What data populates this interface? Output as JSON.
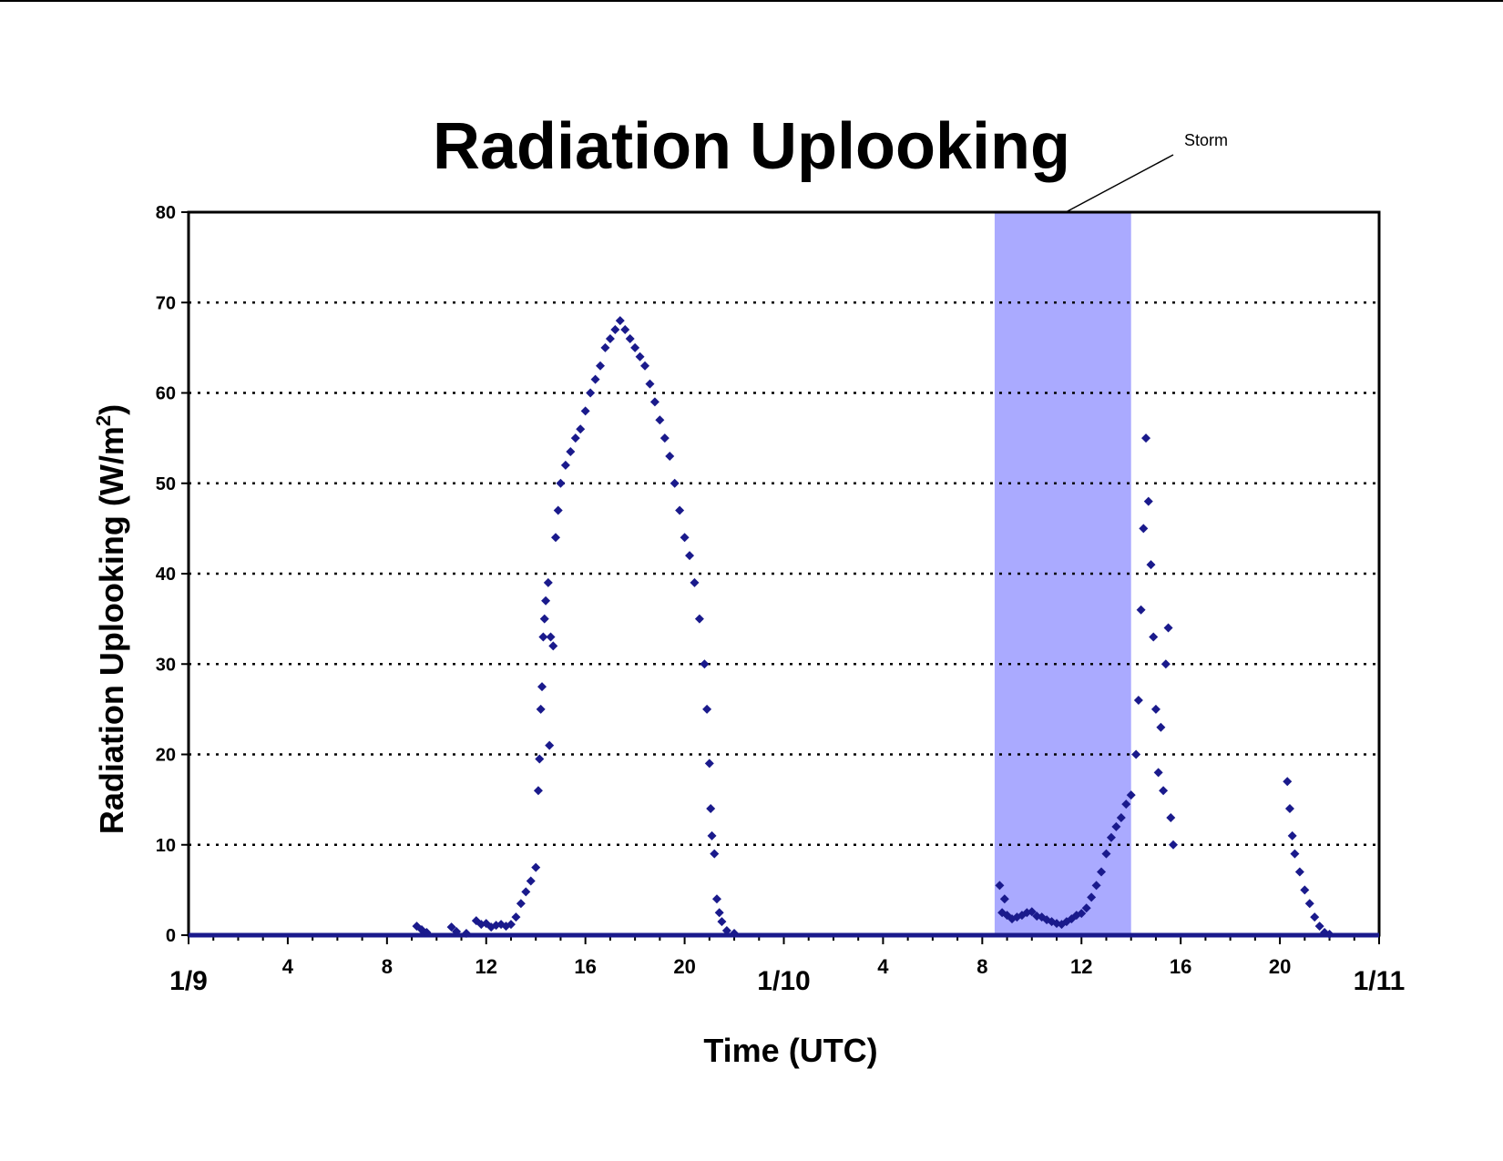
{
  "chart_data": {
    "type": "scatter",
    "title": "Radiation Uplooking",
    "xlabel": "Time (UTC)",
    "ylabel_main": "Radiation Uplooking (W/m",
    "ylabel_sup": "2",
    "ylabel_end": ")",
    "xlim_hours": [
      0,
      48
    ],
    "ylim": [
      0,
      80
    ],
    "y_ticks": [
      0,
      10,
      20,
      30,
      40,
      50,
      60,
      70,
      80
    ],
    "x_hour_ticks": [
      {
        "hour": 4,
        "label": "4"
      },
      {
        "hour": 8,
        "label": "8"
      },
      {
        "hour": 12,
        "label": "12"
      },
      {
        "hour": 16,
        "label": "16"
      },
      {
        "hour": 20,
        "label": "20"
      },
      {
        "hour": 28,
        "label": "4"
      },
      {
        "hour": 32,
        "label": "8"
      },
      {
        "hour": 36,
        "label": "12"
      },
      {
        "hour": 40,
        "label": "16"
      },
      {
        "hour": 44,
        "label": "20"
      }
    ],
    "x_day_ticks": [
      {
        "hour": 0,
        "label": "1/9"
      },
      {
        "hour": 24,
        "label": "1/10"
      },
      {
        "hour": 48,
        "label": "1/11"
      }
    ],
    "grid": "horizontal dotted",
    "marker_color": "#1a1a8c",
    "storm": {
      "label": "Storm",
      "start_hour": 32.5,
      "end_hour": 38.0,
      "color": "#aaaaff"
    },
    "series": [
      {
        "points": [
          [
            9.2,
            1.0
          ],
          [
            9.4,
            0.6
          ],
          [
            9.6,
            0.3
          ],
          [
            10.6,
            0.9
          ],
          [
            10.8,
            0.4
          ],
          [
            11.2,
            0.2
          ],
          [
            11.6,
            1.6
          ],
          [
            11.8,
            1.2
          ],
          [
            12.0,
            1.3
          ],
          [
            12.2,
            0.9
          ],
          [
            12.4,
            1.1
          ],
          [
            12.6,
            1.2
          ],
          [
            12.8,
            1.0
          ],
          [
            13.0,
            1.2
          ],
          [
            13.2,
            2.0
          ],
          [
            13.4,
            3.5
          ],
          [
            13.6,
            4.8
          ],
          [
            13.8,
            6.0
          ],
          [
            14.0,
            7.5
          ],
          [
            14.1,
            16
          ],
          [
            14.15,
            19.5
          ],
          [
            14.2,
            25
          ],
          [
            14.25,
            27.5
          ],
          [
            14.3,
            33
          ],
          [
            14.35,
            35
          ],
          [
            14.4,
            37
          ],
          [
            14.5,
            39
          ],
          [
            14.55,
            21
          ],
          [
            14.6,
            33
          ],
          [
            14.7,
            32
          ],
          [
            14.8,
            44
          ],
          [
            14.9,
            47
          ],
          [
            15.0,
            50
          ],
          [
            15.2,
            52
          ],
          [
            15.4,
            53.5
          ],
          [
            15.6,
            55
          ],
          [
            15.8,
            56
          ],
          [
            16.0,
            58
          ],
          [
            16.2,
            60
          ],
          [
            16.4,
            61.5
          ],
          [
            16.6,
            63
          ],
          [
            16.8,
            65
          ],
          [
            17.0,
            66
          ],
          [
            17.2,
            67
          ],
          [
            17.4,
            68
          ],
          [
            17.6,
            67
          ],
          [
            17.8,
            66
          ],
          [
            18.0,
            65
          ],
          [
            18.2,
            64
          ],
          [
            18.4,
            63
          ],
          [
            18.6,
            61
          ],
          [
            18.8,
            59
          ],
          [
            19.0,
            57
          ],
          [
            19.2,
            55
          ],
          [
            19.4,
            53
          ],
          [
            19.6,
            50
          ],
          [
            19.8,
            47
          ],
          [
            20.0,
            44
          ],
          [
            20.2,
            42
          ],
          [
            20.4,
            39
          ],
          [
            20.6,
            35
          ],
          [
            20.8,
            30
          ],
          [
            20.9,
            25
          ],
          [
            21.0,
            19
          ],
          [
            21.05,
            14
          ],
          [
            21.1,
            11
          ],
          [
            21.2,
            9
          ],
          [
            21.3,
            4
          ],
          [
            21.4,
            2.5
          ],
          [
            21.5,
            1.5
          ],
          [
            21.7,
            0.5
          ],
          [
            22.0,
            0.2
          ],
          [
            32.7,
            5.5
          ],
          [
            32.8,
            2.5
          ],
          [
            32.9,
            4.0
          ],
          [
            33.0,
            2.2
          ],
          [
            33.2,
            1.8
          ],
          [
            33.4,
            2.0
          ],
          [
            33.6,
            2.2
          ],
          [
            33.8,
            2.5
          ],
          [
            34.0,
            2.6
          ],
          [
            34.2,
            2.1
          ],
          [
            34.4,
            2.0
          ],
          [
            34.6,
            1.7
          ],
          [
            34.8,
            1.5
          ],
          [
            35.0,
            1.3
          ],
          [
            35.2,
            1.2
          ],
          [
            35.4,
            1.5
          ],
          [
            35.6,
            1.8
          ],
          [
            35.8,
            2.2
          ],
          [
            36.0,
            2.4
          ],
          [
            36.2,
            3.0
          ],
          [
            36.4,
            4.2
          ],
          [
            36.6,
            5.5
          ],
          [
            36.8,
            7.0
          ],
          [
            37.0,
            9.0
          ],
          [
            37.2,
            10.8
          ],
          [
            37.4,
            12
          ],
          [
            37.6,
            13
          ],
          [
            37.8,
            14.5
          ],
          [
            38.0,
            15.5
          ],
          [
            38.2,
            20
          ],
          [
            38.3,
            26
          ],
          [
            38.4,
            36
          ],
          [
            38.5,
            45
          ],
          [
            38.6,
            55
          ],
          [
            38.7,
            48
          ],
          [
            38.8,
            41
          ],
          [
            38.9,
            33
          ],
          [
            39.0,
            25
          ],
          [
            39.1,
            18
          ],
          [
            39.2,
            23
          ],
          [
            39.3,
            16
          ],
          [
            39.4,
            30
          ],
          [
            39.5,
            34
          ],
          [
            39.6,
            13
          ],
          [
            39.7,
            10
          ],
          [
            44.3,
            17
          ],
          [
            44.4,
            14
          ],
          [
            44.5,
            11
          ],
          [
            44.6,
            9
          ],
          [
            44.8,
            7
          ],
          [
            45.0,
            5
          ],
          [
            45.2,
            3.5
          ],
          [
            45.4,
            2
          ],
          [
            45.6,
            1
          ],
          [
            45.8,
            0.3
          ],
          [
            46.0,
            0.1
          ]
        ]
      }
    ]
  }
}
